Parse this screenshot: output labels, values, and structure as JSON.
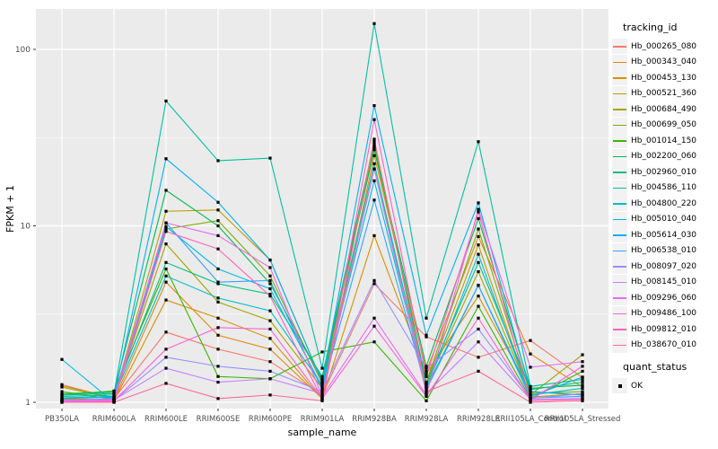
{
  "chart_data": {
    "type": "line",
    "title": "",
    "xlabel": "sample_name",
    "ylabel": "FPKM + 1",
    "y_scale": "log10",
    "y_ticks": [
      "1",
      "10",
      "100"
    ],
    "y_range_px_note": "log decades, axis 1 to >100",
    "grid": "on",
    "panel_bg": "#EBEBEB",
    "grid_color": "#FFFFFF",
    "tick_label_color": "#4D4D4D",
    "point_color": "#000000",
    "legend": {
      "title": "tracking_id",
      "position": "right",
      "key_bg": "#F2F2F2"
    },
    "quant_status": {
      "title": "quant_status",
      "label": "OK"
    },
    "categories": [
      "PB350LA",
      "RRIM600LA",
      "RRIM600LE",
      "RRIM600SE",
      "RRIM600PE",
      "RRIM901LA",
      "RRIM928BA",
      "RRIM928LA",
      "RRIM928LE",
      "RRII105LA_Control",
      "RRII105LA_Stressed"
    ],
    "series": [
      {
        "name": "Hb_000265_080",
        "color": "#F8766D",
        "values": [
          1.26,
          1.05,
          2.5,
          2.0,
          1.7,
          1.1,
          4.7,
          2.35,
          1.8,
          2.24,
          1.38
        ]
      },
      {
        "name": "Hb_000343_040",
        "color": "#E68613",
        "values": [
          1.05,
          1.03,
          4.8,
          2.4,
          2.0,
          1.05,
          25,
          1.5,
          8.7,
          1.88,
          1.22
        ]
      },
      {
        "name": "Hb_000453_130",
        "color": "#D89000",
        "values": [
          1.04,
          1.02,
          3.8,
          3.0,
          2.3,
          1.04,
          8.8,
          1.45,
          4.0,
          1.15,
          1.1
        ]
      },
      {
        "name": "Hb_000521_360",
        "color": "#C09B00",
        "values": [
          1.22,
          1.05,
          12.1,
          12.3,
          6.4,
          1.3,
          29,
          1.28,
          7.8,
          1.07,
          1.12
        ]
      },
      {
        "name": "Hb_000684_490",
        "color": "#A3A500",
        "values": [
          1.24,
          1.06,
          7.9,
          3.7,
          2.9,
          1.2,
          21,
          1.25,
          5.5,
          1.1,
          1.86
        ]
      },
      {
        "name": "Hb_000699_050",
        "color": "#7CAE00",
        "values": [
          1.15,
          1.04,
          9.6,
          10.7,
          5.2,
          1.28,
          28,
          1.3,
          9.6,
          1.12,
          1.15
        ]
      },
      {
        "name": "Hb_001014_150",
        "color": "#39B600",
        "values": [
          1.1,
          1.16,
          5.7,
          1.4,
          1.36,
          1.93,
          2.2,
          1.02,
          3.5,
          1.05,
          1.5
        ]
      },
      {
        "name": "Hb_002200_060",
        "color": "#00BB4E",
        "values": [
          1.12,
          1.14,
          15.9,
          10.0,
          4.7,
          1.35,
          27,
          1.6,
          11.0,
          1.2,
          1.25
        ]
      },
      {
        "name": "Hb_002960_010",
        "color": "#00BF7D",
        "values": [
          1.08,
          1.1,
          6.2,
          4.7,
          4.1,
          1.4,
          30,
          1.28,
          6.2,
          1.18,
          1.3
        ]
      },
      {
        "name": "Hb_004586_110",
        "color": "#00C1A3",
        "values": [
          1.1,
          1.12,
          51,
          23.4,
          24.2,
          1.56,
          140,
          3.0,
          30,
          1.23,
          1.35
        ]
      },
      {
        "name": "Hb_004800_220",
        "color": "#00BFC4",
        "values": [
          1.06,
          1.08,
          5.2,
          3.9,
          3.3,
          1.25,
          22.5,
          1.22,
          4.6,
          1.1,
          1.2
        ]
      },
      {
        "name": "Hb_005010_040",
        "color": "#00BAE0",
        "values": [
          1.75,
          1.0,
          9.9,
          5.7,
          4.4,
          1.22,
          18,
          1.2,
          6.9,
          1.08,
          1.39
        ]
      },
      {
        "name": "Hb_005614_030",
        "color": "#00B0F6",
        "values": [
          1.05,
          1.07,
          24,
          13.6,
          6.4,
          1.3,
          48,
          2.4,
          13.5,
          1.15,
          1.1
        ]
      },
      {
        "name": "Hb_006538_010",
        "color": "#35A2FF",
        "values": [
          1.02,
          1.05,
          10.4,
          4.8,
          4.9,
          1.18,
          14,
          1.18,
          4.6,
          1.06,
          1.08
        ]
      },
      {
        "name": "Hb_008097_020",
        "color": "#9590FF",
        "values": [
          1.03,
          1.02,
          1.8,
          1.6,
          1.5,
          1.15,
          4.9,
          1.56,
          2.6,
          1.05,
          1.12
        ]
      },
      {
        "name": "Hb_008145_010",
        "color": "#C77CFF",
        "values": [
          1.01,
          1.03,
          1.56,
          1.3,
          1.36,
          1.12,
          21,
          1.12,
          2.2,
          1.04,
          1.05
        ]
      },
      {
        "name": "Hb_009296_060",
        "color": "#E76BF3",
        "values": [
          1.02,
          1.04,
          10.4,
          8.8,
          5.8,
          1.08,
          3.0,
          1.1,
          12.4,
          1.58,
          1.7
        ]
      },
      {
        "name": "Hb_009486_100",
        "color": "#FA62DB",
        "values": [
          1.0,
          1.02,
          2.0,
          2.65,
          2.6,
          1.05,
          2.7,
          1.08,
          3.0,
          1.03,
          1.6
        ]
      },
      {
        "name": "Hb_009812_010",
        "color": "#FF62BC",
        "values": [
          1.01,
          1.01,
          9.3,
          7.4,
          4.0,
          1.04,
          40,
          1.4,
          12.0,
          1.02,
          1.04
        ]
      },
      {
        "name": "Hb_038670_010",
        "color": "#FF6A98",
        "values": [
          1.0,
          1.0,
          1.28,
          1.05,
          1.1,
          1.02,
          31,
          1.15,
          1.5,
          1.0,
          1.02
        ]
      }
    ]
  }
}
